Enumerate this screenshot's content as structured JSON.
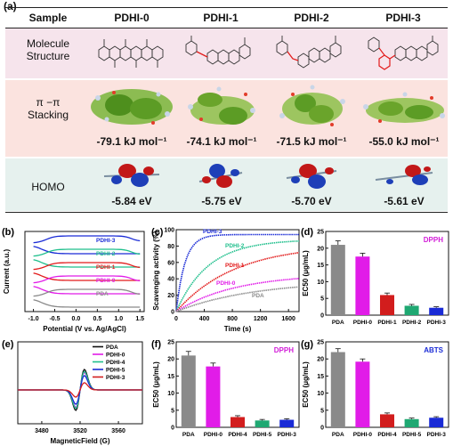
{
  "panel_a": {
    "label": "(a)",
    "sample_header": "Sample",
    "samples": [
      "PDHI-0",
      "PDHI-1",
      "PDHI-2",
      "PDHI-3"
    ],
    "row_labels": {
      "molecule": [
        "Molecule",
        "Structure"
      ],
      "stacking": [
        "π −π",
        "Stacking"
      ],
      "homo": "HOMO"
    },
    "stacking_energies": [
      "-79.1 kJ mol⁻¹",
      "-74.1 kJ mol⁻¹",
      "-71.5 kJ mol⁻¹",
      "-55.0 kJ mol⁻¹"
    ],
    "homo_energies": [
      "-5.84 eV",
      "-5.75 eV",
      "-5.70 eV",
      "-5.61 eV"
    ],
    "colors": {
      "molecule_band": "#f6e4ec",
      "stacking_band": "#fbe3df",
      "homo_band": "#e6f1ee"
    }
  },
  "chart_data": [
    {
      "panel": "(b)",
      "type": "line",
      "xlabel": "Potential (V vs. Ag/AgCl)",
      "ylabel": "Current (a.u.)",
      "x_ticks": [
        "-1.0",
        "-0.5",
        "0.0",
        "0.5",
        "1.0",
        "1.5"
      ],
      "xlim": [
        -1.2,
        1.6
      ],
      "series": [
        {
          "name": "PDHI-3",
          "color": "#1a2bd6",
          "offset": 5
        },
        {
          "name": "PDHI-2",
          "color": "#1fbf8c",
          "offset": 4
        },
        {
          "name": "PDHI-1",
          "color": "#e21b1b",
          "offset": 3
        },
        {
          "name": "PDHI-0",
          "color": "#e11ce8",
          "offset": 2
        },
        {
          "name": "PDA",
          "color": "#8a8a8a",
          "offset": 1
        }
      ]
    },
    {
      "panel": "(c)",
      "type": "line",
      "xlabel": "Time (s)",
      "ylabel": "Scavenging activity (%)",
      "x_ticks": [
        "0",
        "400",
        "800",
        "1200",
        "1600"
      ],
      "y_ticks": [
        "0",
        "20",
        "40",
        "60",
        "80",
        "100"
      ],
      "xlim": [
        0,
        1750
      ],
      "ylim": [
        0,
        100
      ],
      "series": [
        {
          "name": "PDHI-3",
          "color": "#1a2bd6",
          "plateau": 94,
          "k": 0.008
        },
        {
          "name": "PDHI-2",
          "color": "#1fbf8c",
          "plateau": 88,
          "k": 0.0022
        },
        {
          "name": "PDHI-1",
          "color": "#e21b1b",
          "plateau": 82,
          "k": 0.0012
        },
        {
          "name": "PDHI-0",
          "color": "#e11ce8",
          "plateau": 46,
          "k": 0.0012
        },
        {
          "name": "PDA",
          "color": "#8a8a8a",
          "plateau": 38,
          "k": 0.0009
        }
      ]
    },
    {
      "panel": "(d)",
      "type": "bar",
      "title": "DPPH",
      "ylabel": "EC50 (μg/mL)",
      "categories": [
        "PDA",
        "PDHI-0",
        "PDHI-1",
        "PDHI-2",
        "PDHI-3"
      ],
      "values": [
        21,
        17.5,
        6,
        2.8,
        2.2
      ],
      "errors": [
        1.2,
        1.0,
        0.6,
        0.4,
        0.3
      ],
      "colors": [
        "#8a8a8a",
        "#e11ce8",
        "#d21d1d",
        "#1fa872",
        "#1a2bd6"
      ],
      "y_ticks": [
        "0",
        "5",
        "10",
        "15",
        "20",
        "25"
      ],
      "ylim": [
        0,
        25
      ]
    },
    {
      "panel": "(e)",
      "type": "line",
      "xlabel": "MagneticField (G)",
      "x_ticks": [
        "3480",
        "3520",
        "3560"
      ],
      "xlim": [
        3455,
        3585
      ],
      "legend": [
        "PDA",
        "PDHI-0",
        "PDHI-4",
        "PDHI-5",
        "PDHI-3"
      ],
      "series": [
        {
          "name": "PDA",
          "color": "#111111",
          "amp": 1.0
        },
        {
          "name": "PDHI-0",
          "color": "#e11ce8",
          "amp": 0.85
        },
        {
          "name": "PDHI-4",
          "color": "#1fbf8c",
          "amp": 0.9
        },
        {
          "name": "PDHI-5",
          "color": "#1a2bd6",
          "amp": 0.7
        },
        {
          "name": "PDHI-3",
          "color": "#d21d1d",
          "amp": 0.35
        }
      ]
    },
    {
      "panel": "(f)",
      "type": "bar",
      "title": "DPPH",
      "ylabel": "EC50 (μg/mL)",
      "categories": [
        "PDA",
        "PDHI-0",
        "PDHI-4",
        "PDHI-5",
        "PDHI-3"
      ],
      "values": [
        21,
        17.8,
        3.0,
        2.0,
        2.2
      ],
      "errors": [
        1.2,
        1.0,
        0.4,
        0.3,
        0.3
      ],
      "colors": [
        "#8a8a8a",
        "#e11ce8",
        "#d21d1d",
        "#1fa872",
        "#1a2bd6"
      ],
      "y_ticks": [
        "0",
        "5",
        "10",
        "15",
        "20",
        "25"
      ],
      "ylim": [
        0,
        25
      ]
    },
    {
      "panel": "(g)",
      "type": "bar",
      "title": "ABTS",
      "ylabel": "EC50 (μg/mL)",
      "categories": [
        "PDA",
        "PDHI-0",
        "PDHI-4",
        "PDHI-5",
        "PDHI-3"
      ],
      "values": [
        22,
        19.2,
        3.8,
        2.4,
        2.8
      ],
      "errors": [
        1.0,
        0.8,
        0.4,
        0.3,
        0.3
      ],
      "colors": [
        "#8a8a8a",
        "#e11ce8",
        "#d21d1d",
        "#1fa872",
        "#1a2bd6"
      ],
      "y_ticks": [
        "0",
        "5",
        "10",
        "15",
        "20",
        "25"
      ],
      "ylim": [
        0,
        25
      ]
    }
  ]
}
